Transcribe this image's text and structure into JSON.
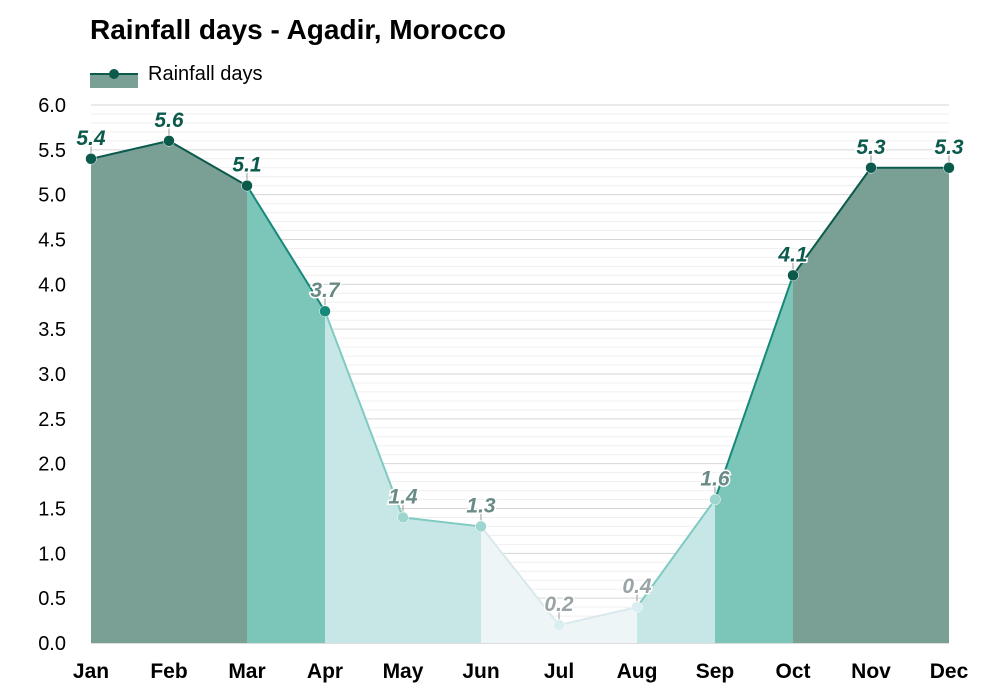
{
  "title": "Rainfall days - Agadir, Morocco",
  "legend": {
    "label": "Rainfall days",
    "position": "top-left"
  },
  "chart_data": {
    "type": "area",
    "title": "Rainfall days - Agadir, Morocco",
    "categories": [
      "Jan",
      "Feb",
      "Mar",
      "Apr",
      "May",
      "Jun",
      "Jul",
      "Aug",
      "Sep",
      "Oct",
      "Nov",
      "Dec"
    ],
    "series": [
      {
        "name": "Rainfall days",
        "values": [
          5.4,
          5.6,
          5.1,
          3.7,
          1.4,
          1.3,
          0.2,
          0.4,
          1.6,
          4.1,
          5.3,
          5.3
        ]
      }
    ],
    "value_labels": [
      "5.4",
      "5.6",
      "5.1",
      "3.7",
      "1.4",
      "1.3",
      "0.2",
      "0.4",
      "1.6",
      "4.1",
      "5.3",
      "5.3"
    ],
    "ylim": [
      0,
      6
    ],
    "yticks": [
      "0.0",
      "0.5",
      "1.0",
      "1.5",
      "2.0",
      "2.5",
      "3.0",
      "3.5",
      "4.0",
      "4.5",
      "5.0",
      "5.5",
      "6.0"
    ],
    "grid": true,
    "colors": {
      "high": "#7a9f94",
      "mid": "#7cc5b9",
      "low": "#c7e6e6",
      "dry": "#eef5f7",
      "line_high": "#0b5a4c",
      "line_mid": "#16897a",
      "line_low": "#7fcbc1",
      "line_dry": "#d8e8ec",
      "label_high": "#0b5a4c",
      "label_low": "#6a8a86",
      "label_dry": "#9aa3a5"
    }
  }
}
